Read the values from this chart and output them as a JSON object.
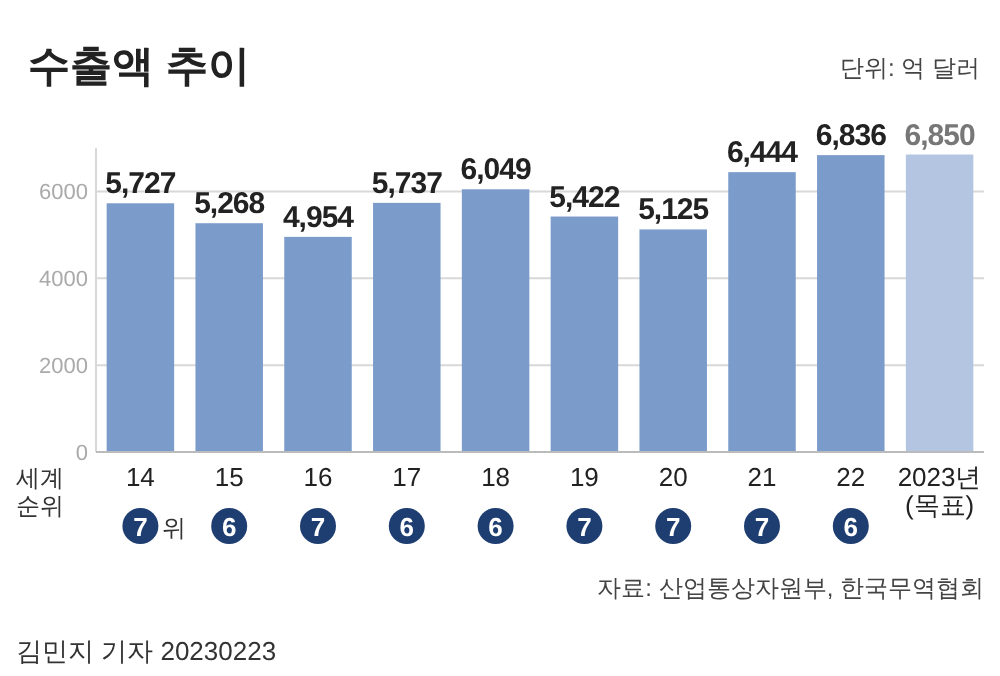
{
  "chart_data": {
    "type": "bar",
    "title": "수출액 추이",
    "subtitle": "단위: 억 달러",
    "categories": [
      "14",
      "15",
      "16",
      "17",
      "18",
      "19",
      "20",
      "21",
      "22",
      "2023년\n(목표)"
    ],
    "values": [
      5727,
      5268,
      4954,
      5737,
      6049,
      5422,
      5125,
      6444,
      6836,
      6850
    ],
    "colors": [
      "#7b9bcb",
      "#7b9bcb",
      "#7b9bcb",
      "#7b9bcb",
      "#7b9bcb",
      "#7b9bcb",
      "#7b9bcb",
      "#7b9bcb",
      "#7b9bcb",
      "#b3c5e1"
    ],
    "value_labels": [
      "5,727",
      "5,268",
      "4,954",
      "5,737",
      "6,049",
      "5,422",
      "5,125",
      "6,444",
      "6,836",
      "6,850"
    ],
    "ylim": [
      0,
      7000
    ],
    "yticks": [
      0,
      2000,
      4000,
      6000
    ],
    "grid": "y",
    "annotations": [
      "세계\n순위",
      "7",
      "6",
      "7",
      "6",
      "6",
      "7",
      "7",
      "7",
      "6",
      "위",
      "자료: 산업통상자원부, 한국무역협회",
      "김민지 기자  20230223"
    ]
  }
}
